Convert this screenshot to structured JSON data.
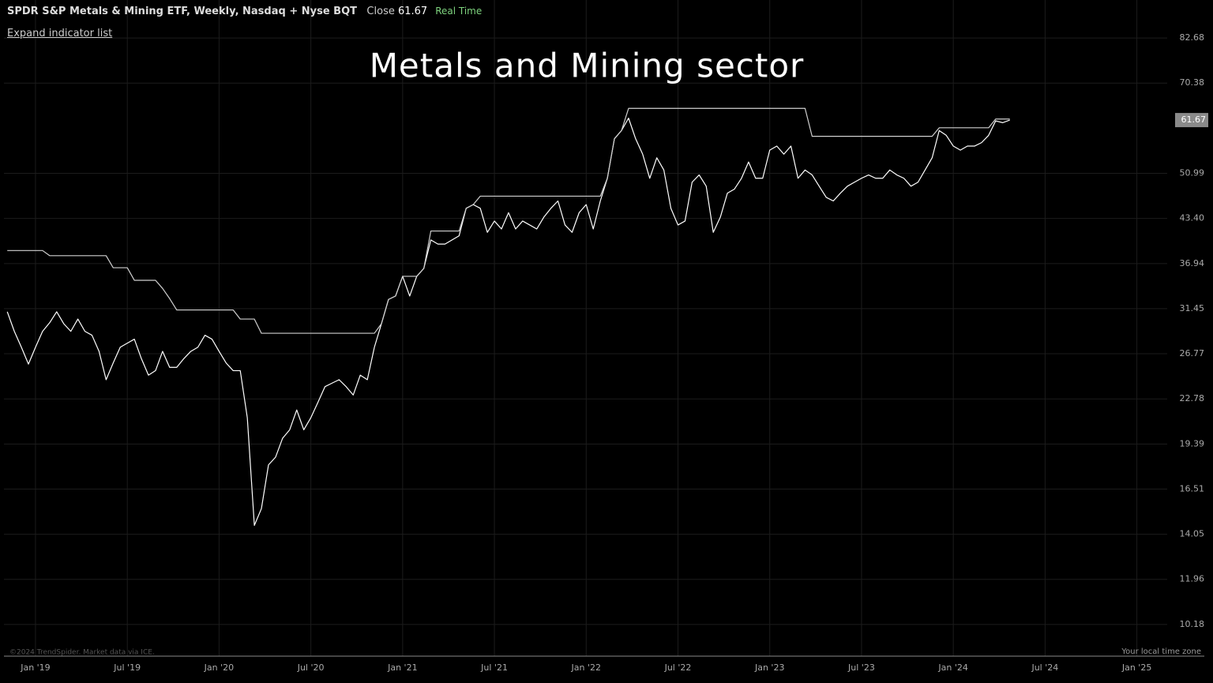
{
  "header": {
    "symbol": "SPDR S&P Metals & Mining ETF, Weekly, Nasdaq + Nyse BQT",
    "close_label": "Close",
    "status": "Real Time",
    "expand": "Expand indicator list"
  },
  "footer": {
    "credit": "©2024 TrendSpider. Market data via ICE.",
    "timezone": "Your local time zone"
  },
  "chart_data": {
    "type": "line",
    "title": "Metals and Mining sector",
    "categories": [
      null,
      null,
      null,
      null,
      "Jan '19",
      null,
      null,
      null,
      null,
      null,
      null,
      null,
      null,
      null,
      null,
      null,
      null,
      "Jul '19",
      null,
      null,
      null,
      null,
      null,
      null,
      null,
      null,
      null,
      null,
      null,
      null,
      "Jan '20",
      null,
      null,
      null,
      null,
      null,
      null,
      null,
      null,
      null,
      null,
      null,
      null,
      "Jul '20",
      null,
      null,
      null,
      null,
      null,
      null,
      null,
      null,
      null,
      null,
      null,
      null,
      "Jan '21",
      null,
      null,
      null,
      null,
      null,
      null,
      null,
      null,
      null,
      null,
      null,
      null,
      "Jul '21",
      null,
      null,
      null,
      null,
      null,
      null,
      null,
      null,
      null,
      null,
      null,
      null,
      "Jan '22",
      null,
      null,
      null,
      null,
      null,
      null,
      null,
      null,
      null,
      null,
      null,
      null,
      "Jul '22",
      null,
      null,
      null,
      null,
      null,
      null,
      null,
      null,
      null,
      null,
      null,
      null,
      "Jan '23",
      null,
      null,
      null,
      null,
      null,
      null,
      null,
      null,
      null,
      null,
      null,
      null,
      "Jul '23",
      null,
      null,
      null,
      null,
      null,
      null,
      null,
      null,
      null,
      null,
      null,
      null,
      "Jan '24",
      null,
      null,
      null,
      null,
      null,
      null,
      null,
      null,
      null,
      null,
      null,
      null,
      "Jul '24",
      null,
      null,
      null,
      null,
      null,
      null,
      null,
      null,
      null,
      null,
      null,
      null,
      "Jan '25",
      null,
      null,
      null,
      null
    ],
    "series": [
      {
        "color": "#ffffff",
        "values": [
          31.1,
          29.0,
          27.4,
          25.8,
          27.4,
          29.0,
          29.9,
          31.1,
          29.8,
          29.0,
          30.3,
          29.0,
          28.6,
          27.0,
          24.4,
          25.9,
          27.4,
          27.8,
          28.2,
          26.3,
          24.8,
          25.2,
          27.0,
          25.5,
          25.5,
          26.3,
          27.0,
          27.4,
          28.6,
          28.2,
          27.0,
          25.9,
          25.2,
          25.2,
          21.3,
          14.5,
          15.4,
          18.0,
          18.5,
          19.8,
          20.4,
          21.9,
          20.4,
          21.3,
          22.5,
          23.8,
          24.1,
          24.4,
          23.8,
          23.1,
          24.8,
          24.4,
          27.4,
          29.8,
          32.5,
          32.9,
          35.3,
          32.9,
          35.3,
          36.3,
          40.2,
          39.6,
          39.6,
          40.2,
          40.8,
          45.0,
          45.6,
          45.0,
          41.3,
          43.0,
          41.8,
          44.3,
          41.8,
          43.0,
          42.4,
          41.8,
          43.6,
          45.0,
          46.2,
          42.4,
          41.3,
          44.3,
          45.6,
          41.8,
          46.2,
          50.1,
          57.7,
          59.4,
          62.1,
          57.7,
          54.6,
          50.1,
          53.9,
          51.6,
          45.0,
          42.4,
          43.0,
          49.4,
          50.7,
          48.7,
          41.3,
          43.6,
          47.5,
          48.2,
          50.1,
          53.1,
          50.1,
          50.1,
          55.4,
          56.2,
          54.6,
          56.2,
          50.1,
          51.6,
          50.7,
          48.7,
          46.8,
          46.2,
          47.5,
          48.7,
          49.4,
          50.1,
          50.7,
          50.1,
          50.1,
          51.6,
          50.7,
          50.1,
          48.7,
          49.4,
          51.6,
          53.9,
          59.4,
          58.4,
          56.2,
          55.4,
          56.2,
          56.2,
          56.9,
          58.4,
          61.5,
          61.1,
          61.67,
          null,
          null,
          null,
          null,
          null,
          null,
          null,
          null,
          null,
          null,
          null,
          null,
          null,
          null,
          null,
          null,
          null,
          null,
          null,
          null,
          null,
          null
        ]
      },
      {
        "color": "#d0d0d0",
        "values": [
          38.7,
          38.7,
          38.7,
          38.7,
          38.7,
          38.7,
          38.0,
          38.0,
          38.0,
          38.0,
          38.0,
          38.0,
          38.0,
          38.0,
          38.0,
          36.4,
          36.4,
          36.4,
          34.8,
          34.8,
          34.8,
          34.8,
          33.8,
          32.6,
          31.3,
          31.3,
          31.3,
          31.3,
          31.3,
          31.3,
          31.3,
          31.3,
          31.3,
          30.3,
          30.3,
          30.3,
          28.8,
          28.8,
          28.8,
          28.8,
          28.8,
          28.8,
          28.8,
          28.8,
          28.8,
          28.8,
          28.8,
          28.8,
          28.8,
          28.8,
          28.8,
          28.8,
          28.8,
          29.8,
          32.5,
          32.9,
          35.3,
          35.3,
          35.3,
          36.3,
          41.5,
          41.5,
          41.5,
          41.5,
          41.5,
          45.0,
          45.6,
          47.0,
          47.0,
          47.0,
          47.0,
          47.0,
          47.0,
          47.0,
          47.0,
          47.0,
          47.0,
          47.0,
          47.0,
          47.0,
          47.0,
          47.0,
          47.0,
          47.0,
          47.0,
          50.1,
          57.7,
          59.4,
          64.3,
          64.3,
          64.3,
          64.3,
          64.3,
          64.3,
          64.3,
          64.3,
          64.3,
          64.3,
          64.3,
          64.3,
          64.3,
          64.3,
          64.3,
          64.3,
          64.3,
          64.3,
          64.3,
          64.3,
          64.3,
          64.3,
          64.3,
          64.3,
          64.3,
          64.3,
          58.2,
          58.2,
          58.2,
          58.2,
          58.2,
          58.2,
          58.2,
          58.2,
          58.2,
          58.2,
          58.2,
          58.2,
          58.2,
          58.2,
          58.2,
          58.2,
          58.2,
          58.2,
          60.0,
          60.0,
          60.0,
          60.0,
          60.0,
          60.0,
          60.0,
          60.0,
          61.9,
          61.9,
          61.9,
          null,
          null,
          null,
          null,
          null,
          null,
          null,
          null,
          null,
          null,
          null,
          null,
          null,
          null,
          null,
          null,
          null,
          null,
          null,
          null,
          null,
          null
        ]
      }
    ],
    "ylim": [
      9.09,
      94.7
    ],
    "ylog": true,
    "yticks": [
      82.68,
      70.38,
      50.99,
      {
        "value": 43.4,
        "label": "43.40"
      },
      36.94,
      31.45,
      26.77,
      22.78,
      19.39,
      16.51,
      14.05,
      11.96,
      10.18
    ],
    "grid": true
  }
}
